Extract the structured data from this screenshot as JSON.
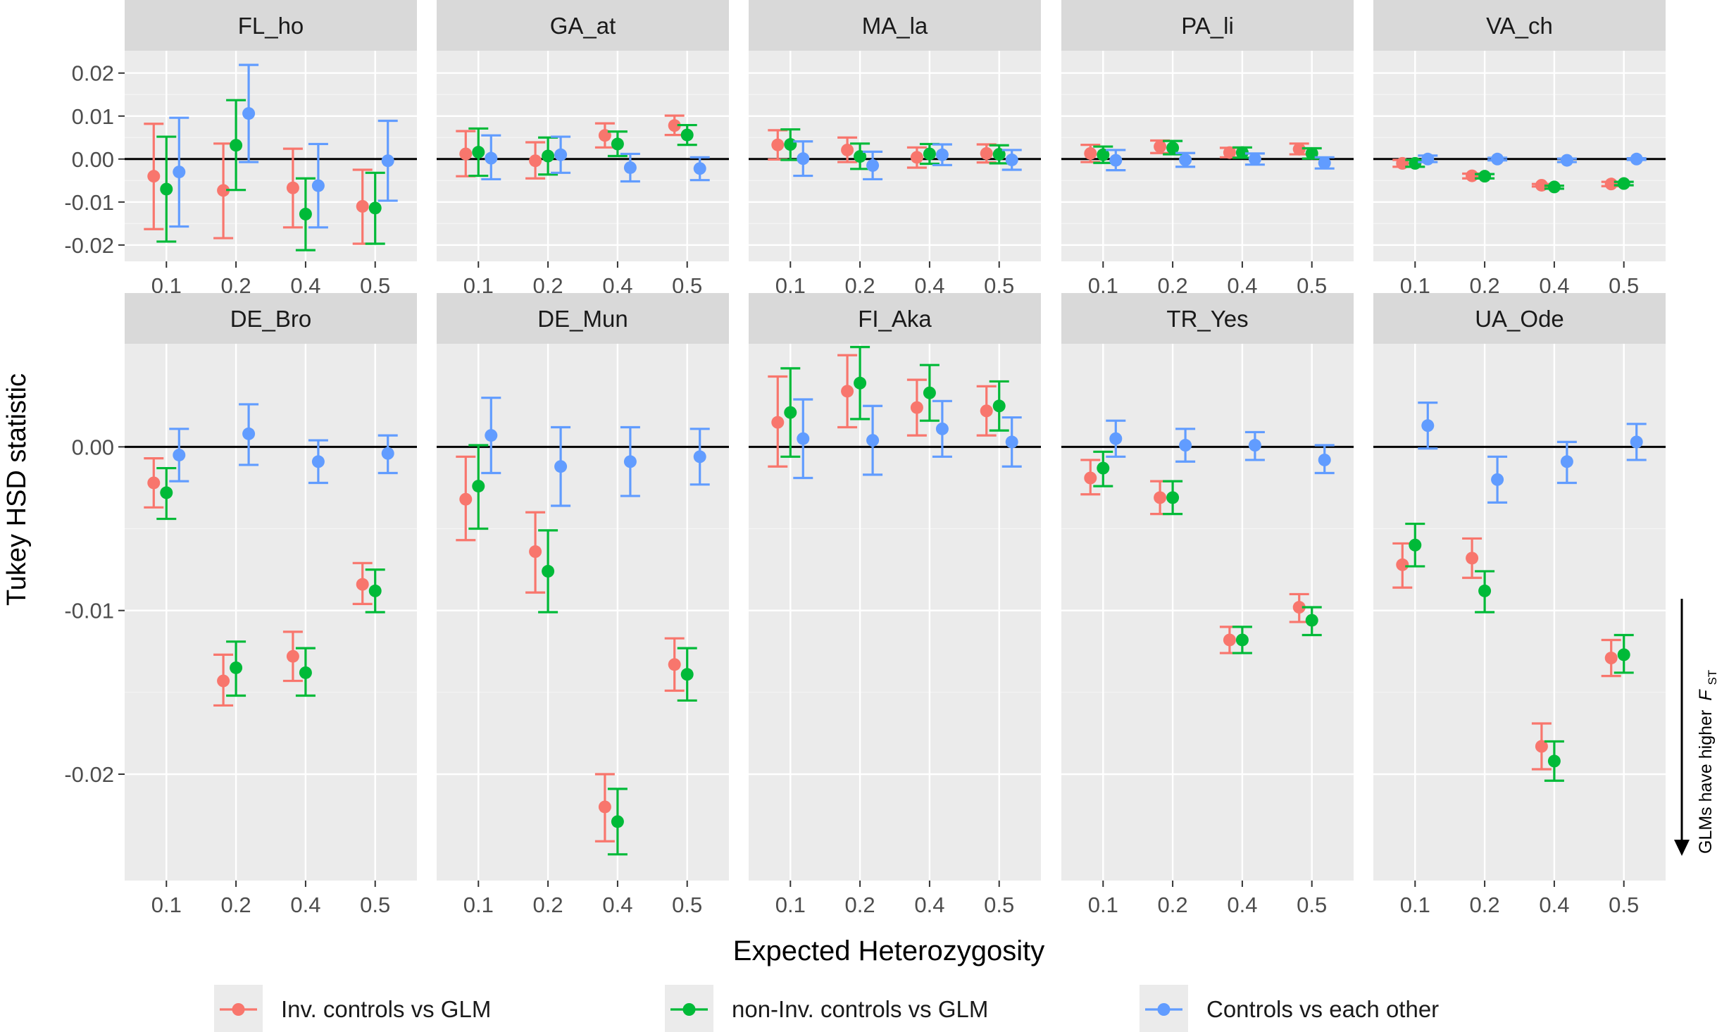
{
  "chart_data": {
    "type": "scatter",
    "subtype": "point-range faceted (dodged points with error bars)",
    "ylabel": "Tukey HSD statistic",
    "xlabel": "Expected Heterozygosity",
    "x_categories": [
      "0.1",
      "0.2",
      "0.4",
      "0.5"
    ],
    "reference_line": 0,
    "annotation": {
      "text": "GLMs have higher",
      "symbol": "F",
      "subscript": "ST"
    },
    "series_meta": [
      {
        "key": "inv",
        "name": "Inv. controls vs GLM",
        "color": "#F8766D"
      },
      {
        "key": "noninv",
        "name": "non-Inv. controls vs GLM",
        "color": "#00BA38"
      },
      {
        "key": "ctrl",
        "name": "Controls vs each other",
        "color": "#619CFF"
      }
    ],
    "rows": [
      {
        "ylim": [
          -0.0238,
          0.0252
        ],
        "y_ticks": [
          0.02,
          0.01,
          0.0,
          -0.01,
          -0.02
        ],
        "y_tick_labels": [
          "0.02",
          "0.01",
          "0.00",
          "-0.01",
          "-0.02"
        ],
        "facets": [
          {
            "title": "FL_ho",
            "series": {
              "inv": [
                [
                  -0.004,
                  -0.0163,
                  0.0082
                ],
                [
                  -0.0073,
                  -0.0184,
                  0.0036
                ],
                [
                  -0.0067,
                  -0.0159,
                  0.0024
                ],
                [
                  -0.011,
                  -0.0197,
                  -0.0025
                ]
              ],
              "noninv": [
                [
                  -0.007,
                  -0.0192,
                  0.0052
                ],
                [
                  0.0032,
                  -0.0072,
                  0.0137
                ],
                [
                  -0.0128,
                  -0.0212,
                  -0.0045
                ],
                [
                  -0.0114,
                  -0.0197,
                  -0.0032
                ]
              ],
              "ctrl": [
                [
                  -0.003,
                  -0.0157,
                  0.0096
                ],
                [
                  0.0106,
                  -0.0007,
                  0.0219
                ],
                [
                  -0.0062,
                  -0.0159,
                  0.0035
                ],
                [
                  -0.0004,
                  -0.0097,
                  0.0089
                ]
              ]
            }
          },
          {
            "title": "GA_at",
            "series": {
              "inv": [
                [
                  0.0012,
                  -0.004,
                  0.0065
                ],
                [
                  -0.0004,
                  -0.0045,
                  0.0039
                ],
                [
                  0.0055,
                  0.0027,
                  0.0083
                ],
                [
                  0.0078,
                  0.0056,
                  0.0101
                ]
              ],
              "noninv": [
                [
                  0.0016,
                  -0.0039,
                  0.0071
                ],
                [
                  0.0007,
                  -0.0036,
                  0.005
                ],
                [
                  0.0035,
                  0.0007,
                  0.0064
                ],
                [
                  0.0056,
                  0.0033,
                  0.0079
                ]
              ],
              "ctrl": [
                [
                  0.0002,
                  -0.0047,
                  0.0055
                ],
                [
                  0.001,
                  -0.0032,
                  0.0052
                ],
                [
                  -0.002,
                  -0.0052,
                  0.0012
                ],
                [
                  -0.0022,
                  -0.0049,
                  0.0004
                ]
              ]
            }
          },
          {
            "title": "MA_la",
            "series": {
              "inv": [
                [
                  0.0033,
                  -0.0001,
                  0.0067
                ],
                [
                  0.0021,
                  -0.0007,
                  0.005
                ],
                [
                  0.0004,
                  -0.002,
                  0.0027
                ],
                [
                  0.0013,
                  -0.0008,
                  0.0034
                ]
              ],
              "noninv": [
                [
                  0.0034,
                  -0.0002,
                  0.0069
                ],
                [
                  0.0006,
                  -0.0023,
                  0.0036
                ],
                [
                  0.0012,
                  -0.0011,
                  0.0035
                ],
                [
                  0.0011,
                  -0.001,
                  0.0032
                ]
              ],
              "ctrl": [
                [
                  0.0001,
                  -0.0039,
                  0.0041
                ],
                [
                  -0.0015,
                  -0.0047,
                  0.0017
                ],
                [
                  0.001,
                  -0.0014,
                  0.0034
                ],
                [
                  -0.0002,
                  -0.0025,
                  0.0021
                ]
              ]
            }
          },
          {
            "title": "PA_li",
            "series": {
              "inv": [
                [
                  0.0013,
                  -0.0007,
                  0.0033
                ],
                [
                  0.0029,
                  0.0014,
                  0.0043
                ],
                [
                  0.0015,
                  0.0004,
                  0.0026
                ],
                [
                  0.0023,
                  0.0011,
                  0.0036
                ]
              ],
              "noninv": [
                [
                  0.001,
                  -0.0009,
                  0.0029
                ],
                [
                  0.0026,
                  0.0011,
                  0.0042
                ],
                [
                  0.0015,
                  0.0003,
                  0.0027
                ],
                [
                  0.0013,
                  0.0001,
                  0.0025
                ]
              ],
              "ctrl": [
                [
                  -0.0003,
                  -0.0026,
                  0.0021
                ],
                [
                  -0.0002,
                  -0.0018,
                  0.0014
                ],
                [
                  0.0,
                  -0.0013,
                  0.0013
                ],
                [
                  -0.0009,
                  -0.0022,
                  0.0004
                ]
              ]
            }
          },
          {
            "title": "VA_ch",
            "series": {
              "inv": [
                [
                  -0.001,
                  -0.0018,
                  -0.0002
                ],
                [
                  -0.0039,
                  -0.0045,
                  -0.0034
                ],
                [
                  -0.0061,
                  -0.0064,
                  -0.0058
                ],
                [
                  -0.0058,
                  -0.0063,
                  -0.0053
                ]
              ],
              "noninv": [
                [
                  -0.001,
                  -0.0018,
                  -0.0002
                ],
                [
                  -0.004,
                  -0.0045,
                  -0.0035
                ],
                [
                  -0.0065,
                  -0.0069,
                  -0.0062
                ],
                [
                  -0.0057,
                  -0.0061,
                  -0.0053
                ]
              ],
              "ctrl": [
                [
                  0.0,
                  -0.0007,
                  0.0008
                ],
                [
                  0.0,
                  -0.0003,
                  0.0003
                ],
                [
                  -0.0003,
                  -0.0007,
                  0.0001
                ],
                [
                  0.0,
                  -0.0002,
                  0.0002
                ]
              ]
            }
          }
        ]
      },
      {
        "ylim": [
          -0.0265,
          0.0063
        ],
        "y_ticks": [
          0.0,
          -0.01,
          -0.02
        ],
        "y_tick_labels": [
          "0.00",
          "-0.01",
          "-0.02"
        ],
        "facets": [
          {
            "title": "DE_Bro",
            "series": {
              "inv": [
                [
                  -0.0022,
                  -0.0037,
                  -0.0007
                ],
                [
                  -0.0143,
                  -0.0158,
                  -0.0127
                ],
                [
                  -0.0128,
                  -0.0143,
                  -0.0113
                ],
                [
                  -0.0084,
                  -0.0096,
                  -0.0071
                ]
              ],
              "noninv": [
                [
                  -0.0028,
                  -0.0044,
                  -0.0013
                ],
                [
                  -0.0135,
                  -0.0152,
                  -0.0119
                ],
                [
                  -0.0138,
                  -0.0152,
                  -0.0123
                ],
                [
                  -0.0088,
                  -0.0101,
                  -0.0075
                ]
              ],
              "ctrl": [
                [
                  -0.0005,
                  -0.0021,
                  0.0011
                ],
                [
                  0.0008,
                  -0.0011,
                  0.0026
                ],
                [
                  -0.0009,
                  -0.0022,
                  0.0004
                ],
                [
                  -0.0004,
                  -0.0016,
                  0.0007
                ]
              ]
            }
          },
          {
            "title": "DE_Mun",
            "series": {
              "inv": [
                [
                  -0.0032,
                  -0.0057,
                  -0.0006
                ],
                [
                  -0.0064,
                  -0.0089,
                  -0.004
                ],
                [
                  -0.022,
                  -0.0241,
                  -0.02
                ],
                [
                  -0.0133,
                  -0.0149,
                  -0.0117
                ]
              ],
              "noninv": [
                [
                  -0.0024,
                  -0.005,
                  0.0001
                ],
                [
                  -0.0076,
                  -0.0101,
                  -0.0051
                ],
                [
                  -0.0229,
                  -0.0249,
                  -0.0209
                ],
                [
                  -0.0139,
                  -0.0155,
                  -0.0123
                ]
              ],
              "ctrl": [
                [
                  0.0007,
                  -0.0016,
                  0.003
                ],
                [
                  -0.0012,
                  -0.0036,
                  0.0012
                ],
                [
                  -0.0009,
                  -0.003,
                  0.0012
                ],
                [
                  -0.0006,
                  -0.0023,
                  0.0011
                ]
              ]
            }
          },
          {
            "title": "FI_Aka",
            "series": {
              "inv": [
                [
                  0.0015,
                  -0.0012,
                  0.0043
                ],
                [
                  0.0034,
                  0.0012,
                  0.0056
                ],
                [
                  0.0024,
                  0.0007,
                  0.0041
                ],
                [
                  0.0022,
                  0.0007,
                  0.0037
                ]
              ],
              "noninv": [
                [
                  0.0021,
                  -0.0006,
                  0.0048
                ],
                [
                  0.0039,
                  0.0017,
                  0.0061
                ],
                [
                  0.0033,
                  0.0016,
                  0.005
                ],
                [
                  0.0025,
                  0.001,
                  0.004
                ]
              ],
              "ctrl": [
                [
                  0.0005,
                  -0.0019,
                  0.0029
                ],
                [
                  0.0004,
                  -0.0017,
                  0.0025
                ],
                [
                  0.0011,
                  -0.0006,
                  0.0028
                ],
                [
                  0.0003,
                  -0.0012,
                  0.0018
                ]
              ]
            }
          },
          {
            "title": "TR_Yes",
            "series": {
              "inv": [
                [
                  -0.0019,
                  -0.0029,
                  -0.0008
                ],
                [
                  -0.0031,
                  -0.0041,
                  -0.0021
                ],
                [
                  -0.0118,
                  -0.0126,
                  -0.011
                ],
                [
                  -0.0098,
                  -0.0107,
                  -0.009
                ]
              ],
              "noninv": [
                [
                  -0.0013,
                  -0.0024,
                  -0.0003
                ],
                [
                  -0.0031,
                  -0.0041,
                  -0.0021
                ],
                [
                  -0.0118,
                  -0.0126,
                  -0.011
                ],
                [
                  -0.0106,
                  -0.0115,
                  -0.0098
                ]
              ],
              "ctrl": [
                [
                  0.0005,
                  -0.0006,
                  0.0016
                ],
                [
                  0.0001,
                  -0.0009,
                  0.0011
                ],
                [
                  0.0001,
                  -0.0008,
                  0.0009
                ],
                [
                  -0.0008,
                  -0.0016,
                  0.0001
                ]
              ]
            }
          },
          {
            "title": "UA_Ode",
            "series": {
              "inv": [
                [
                  -0.0072,
                  -0.0086,
                  -0.0059
                ],
                [
                  -0.0068,
                  -0.008,
                  -0.0056
                ],
                [
                  -0.0183,
                  -0.0197,
                  -0.0169
                ],
                [
                  -0.0129,
                  -0.014,
                  -0.0118
                ]
              ],
              "noninv": [
                [
                  -0.006,
                  -0.0073,
                  -0.0047
                ],
                [
                  -0.0088,
                  -0.0101,
                  -0.0076
                ],
                [
                  -0.0192,
                  -0.0204,
                  -0.018
                ],
                [
                  -0.0127,
                  -0.0138,
                  -0.0115
                ]
              ],
              "ctrl": [
                [
                  0.0013,
                  -0.0001,
                  0.0027
                ],
                [
                  -0.002,
                  -0.0034,
                  -0.0006
                ],
                [
                  -0.0009,
                  -0.0022,
                  0.0003
                ],
                [
                  0.0003,
                  -0.0008,
                  0.0014
                ]
              ]
            }
          }
        ]
      }
    ]
  }
}
